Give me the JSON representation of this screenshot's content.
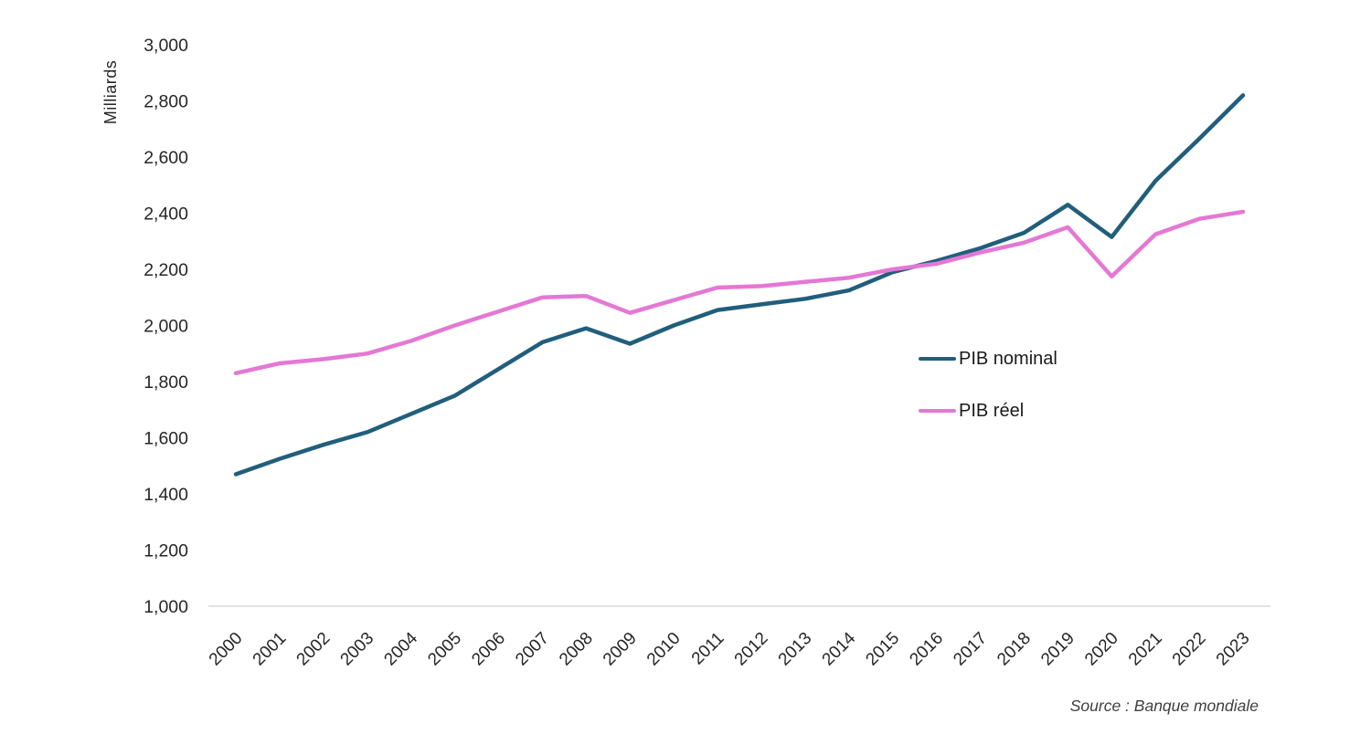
{
  "chart_data": {
    "type": "line",
    "x": [
      2000,
      2001,
      2002,
      2003,
      2004,
      2005,
      2006,
      2007,
      2008,
      2009,
      2010,
      2011,
      2012,
      2013,
      2014,
      2015,
      2016,
      2017,
      2018,
      2019,
      2020,
      2021,
      2022,
      2023
    ],
    "series": [
      {
        "name": "PIB nominal",
        "color": "#215e7c",
        "values": [
          1470,
          1525,
          1575,
          1620,
          1685,
          1750,
          1845,
          1940,
          1990,
          1935,
          2000,
          2055,
          2075,
          2095,
          2125,
          2190,
          2230,
          2275,
          2330,
          2430,
          2315,
          2515,
          2665,
          2820
        ]
      },
      {
        "name": "PIB réel",
        "color": "#e478d4",
        "values": [
          1830,
          1865,
          1880,
          1900,
          1945,
          2000,
          2050,
          2100,
          2105,
          2045,
          2090,
          2135,
          2140,
          2155,
          2170,
          2200,
          2220,
          2260,
          2295,
          2350,
          2175,
          2325,
          2380,
          2405
        ]
      }
    ],
    "title": "",
    "xlabel": "",
    "ylabel": "Milliards",
    "ylim": [
      1000,
      3000
    ],
    "yticks": [
      1000,
      1200,
      1400,
      1600,
      1800,
      2000,
      2200,
      2400,
      2600,
      2800,
      3000
    ],
    "ytick_labels": [
      "1,000",
      "1,200",
      "1,400",
      "1,600",
      "1,800",
      "2,000",
      "2,200",
      "2,400",
      "2,600",
      "2,800",
      "3,000"
    ],
    "grid": false,
    "legend_position": "center-right",
    "source_note": "Source : Banque mondiale"
  },
  "colors": {
    "axis_line": "#d9d9d9",
    "tick_text": "#262626",
    "legend_text": "#1a1a1a",
    "source_text": "#3f3f3f"
  }
}
